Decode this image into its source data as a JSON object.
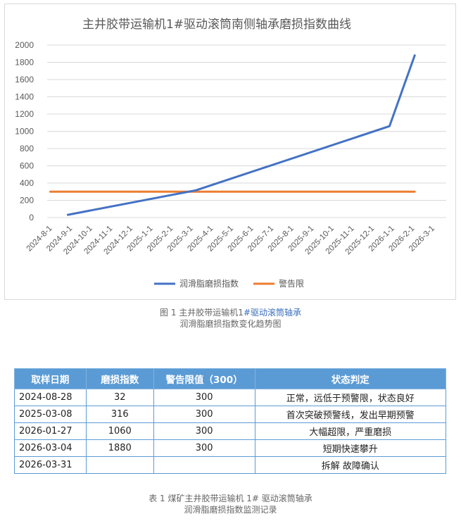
{
  "chart_data": {
    "type": "line",
    "title": "主井胶带运输机1#驱动滚筒南侧轴承磨损指数曲线",
    "categories": [
      "2024-8-1",
      "2024-9-1",
      "2024-10-1",
      "2024-11-1",
      "2024-12-1",
      "2025-1-1",
      "2025-2-1",
      "2025-3-1",
      "2025-4-1",
      "2025-5-1",
      "2025-6-1",
      "2025-7-1",
      "2025-8-1",
      "2025-9-1",
      "2025-10-1",
      "2025-11-1",
      "2025-12-1",
      "2026-1-1",
      "2026-2-1",
      "2026-3-1"
    ],
    "y_ticks": [
      "0",
      "200",
      "400",
      "600",
      "800",
      "1000",
      "1200",
      "1400",
      "1600",
      "1800",
      "2000"
    ],
    "ylim": [
      0,
      2000
    ],
    "grid": true,
    "legend_position": "bottom",
    "series": [
      {
        "name": "润滑脂磨损指数",
        "color": "#4472c4",
        "points": [
          [
            0.87,
            32
          ],
          [
            7.23,
            316
          ],
          [
            16.85,
            1060
          ],
          [
            18.1,
            1880
          ]
        ]
      },
      {
        "name": "警告限",
        "color": "#ed7d31",
        "points": [
          [
            0,
            300
          ],
          [
            18.1,
            300
          ]
        ]
      }
    ]
  },
  "figure_caption": {
    "line1_prefix": "图 1 主井胶带运输机1",
    "line1_blue": "#驱动滚筒轴承",
    "line2": "润滑脂磨损指数变化趋势图"
  },
  "table": {
    "headers": [
      "取样日期",
      "磨损指数",
      "警告限值（300）",
      "状态判定"
    ],
    "rows": [
      [
        "2024-08-28",
        "32",
        "300",
        "正常，远低于预警限，状态良好"
      ],
      [
        "2025-03-08",
        "316",
        "300",
        "首次突破预警线，发出早期预警"
      ],
      [
        "2026-01-27",
        "1060",
        "300",
        "大幅超限，严重磨损"
      ],
      [
        "2026-03-04",
        "1880",
        "300",
        "短期快速攀升"
      ],
      [
        "2026-03-31",
        "",
        "",
        "拆解  故障确认"
      ]
    ]
  },
  "table_caption": {
    "line1": "表 1 煤矿主井胶带运输机 1# 驱动滚筒轴承",
    "line2": "润滑脂磨损指数监测记录"
  }
}
